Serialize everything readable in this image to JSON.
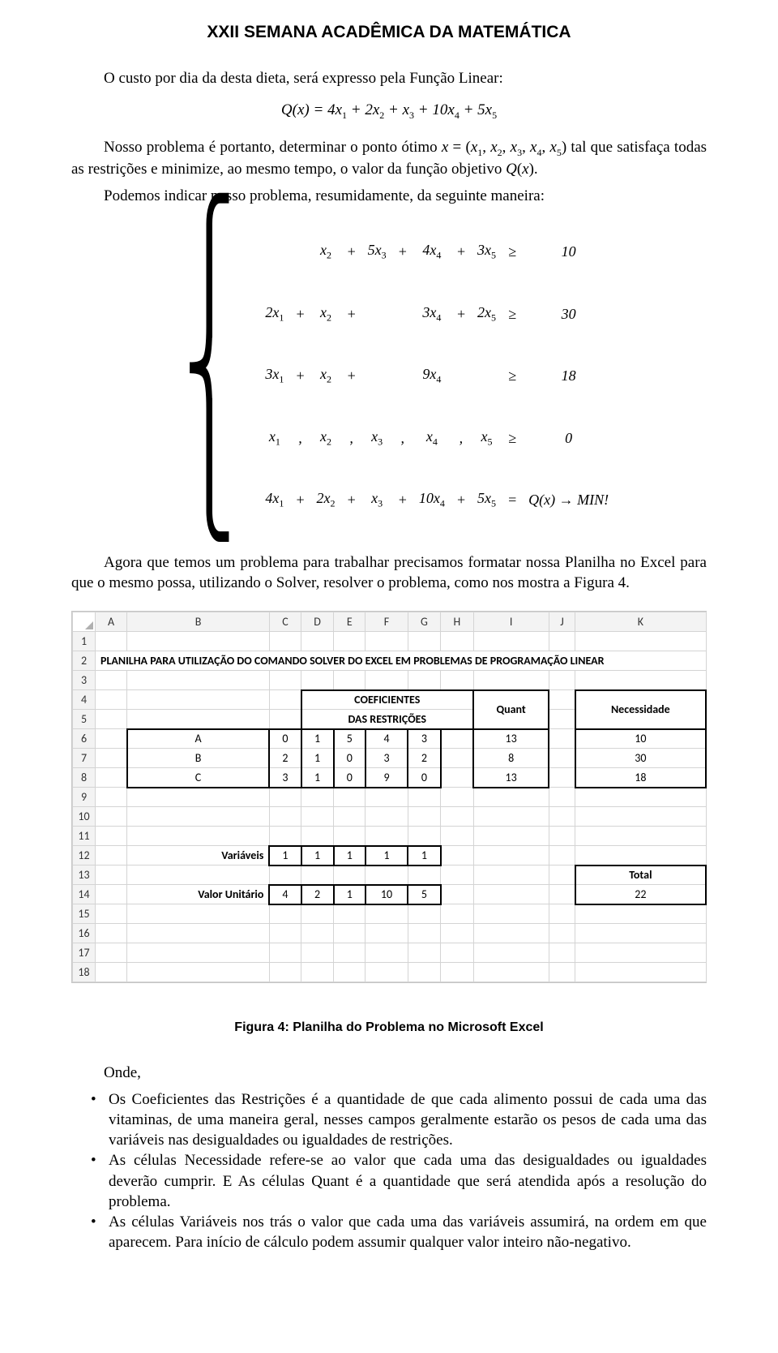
{
  "header": {
    "title": "XXII SEMANA ACADÊMICA DA MATEMÁTICA"
  },
  "p1": "O custo por dia da desta dieta, será expresso pela Função Linear:",
  "eq1": "Q(x) = 4x₁ + 2x₂ + x₃ + 10x₄ + 5x₅",
  "p2": "Nosso problema é portanto, determinar o ponto ótimo x = (x₁, x₂, x₃, x₄, x₅) tal que satisfaça todas as restrições e minimize, ao mesmo tempo, o valor da função objetivo Q(x).",
  "p3": "Podemos indicar nosso problema, resumidamente, da seguinte maneira:",
  "lp": {
    "rows": [
      [
        "",
        "",
        "x₂",
        "+",
        "5x₃",
        "+",
        "4x₄",
        "+",
        "3x₅",
        "≥",
        "10"
      ],
      [
        "2x₁",
        "+",
        "x₂",
        "+",
        "",
        "",
        "3x₄",
        "+",
        "2x₅",
        "≥",
        "30"
      ],
      [
        "3x₁",
        "+",
        "x₂",
        "+",
        "",
        "",
        "9x₄",
        "",
        "",
        "≥",
        "18"
      ],
      [
        "x₁",
        ",",
        "x₂",
        ",",
        "x₃",
        ",",
        "x₄",
        ",",
        "x₅",
        "≥",
        "0"
      ],
      [
        "4x₁",
        "+",
        "2x₂",
        "+",
        "x₃",
        "+",
        "10x₄",
        "+",
        "5x₅",
        "=",
        "Q(x) → MIN!"
      ]
    ]
  },
  "p4": "Agora que temos um problema para trabalhar precisamos formatar nossa Planilha no Excel para que o mesmo possa, utilizando o Solver, resolver o problema, como nos mostra a Figura 4.",
  "spreadsheet": {
    "columns": [
      "A",
      "B",
      "C",
      "D",
      "E",
      "F",
      "G",
      "H",
      "I",
      "J",
      "K"
    ],
    "row_count": 18,
    "title_row": {
      "row": 2,
      "text": "PLANILHA PARA UTILIZAÇÃO DO COMANDO SOLVER DO EXCEL EM PROBLEMAS DE PROGRAMAÇÃO LINEAR"
    },
    "coef_header_top": {
      "row": 4,
      "text": "COEFICIENTES"
    },
    "coef_header_bot": {
      "row": 5,
      "text": "DAS RESTRIÇÕES"
    },
    "quant_header": {
      "row": 4,
      "text": "Quant"
    },
    "necess_header": {
      "row": 4,
      "text": "Necessidade"
    },
    "coef_table": {
      "row_labels": [
        "A",
        "B",
        "C"
      ],
      "rows": [
        [
          0,
          1,
          5,
          4,
          3
        ],
        [
          2,
          1,
          0,
          3,
          2
        ],
        [
          3,
          1,
          0,
          9,
          0
        ]
      ],
      "quant": [
        13,
        8,
        13
      ],
      "necess": [
        10,
        30,
        18
      ]
    },
    "vars_label": "Variáveis",
    "vars_row": [
      1,
      1,
      1,
      1,
      1
    ],
    "valor_label": "Valor Unitário",
    "valor_row": [
      4,
      2,
      1,
      10,
      5
    ],
    "total_label": "Total",
    "total_value": 22,
    "colors": {
      "gridline": "#d4d4d4",
      "header_bg": "#f3f3f3",
      "border_strong": "#000000",
      "background": "#ffffff"
    },
    "fontsize": 14
  },
  "figure_caption": "Figura 4: Planilha do Problema no Microsoft Excel",
  "onde": "Onde,",
  "bullets": [
    "Os Coeficientes das Restrições é a quantidade de que cada alimento possui de cada uma das vitaminas, de uma maneira geral, nesses campos geralmente estarão os pesos de cada uma das variáveis nas desigualdades ou igualdades de restrições.",
    "As células Necessidade refere-se ao valor que cada uma das desigualdades ou igualdades deverão cumprir. E As células Quant é a quantidade que será atendida após a resolução do problema.",
    "As células Variáveis nos trás o valor que cada uma das variáveis assumirá, na ordem em que aparecem.  Para início de cálculo podem assumir qualquer valor inteiro não-negativo."
  ]
}
